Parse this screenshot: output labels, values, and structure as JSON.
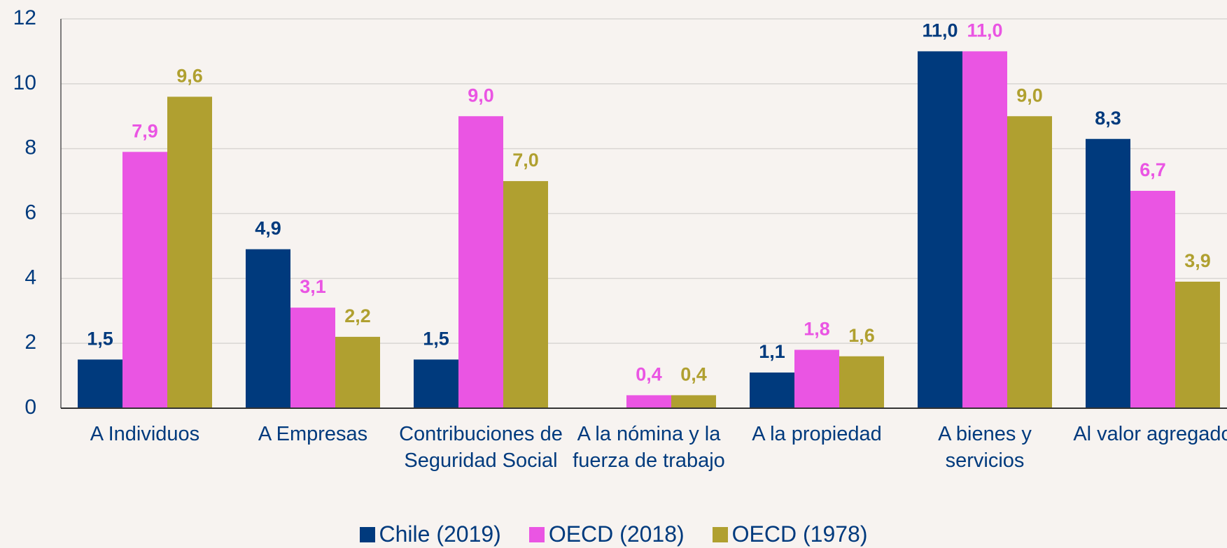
{
  "chart_data": {
    "type": "bar",
    "categories": [
      "A Individuos",
      "A Empresas",
      "Contribuciones de Seguridad Social",
      "A la nómina y la fuerza de trabajo",
      "A la propiedad",
      "A bienes y servicios",
      "Al valor agregado"
    ],
    "series": [
      {
        "name": "Chile (2019)",
        "color": "#003a7d",
        "values": [
          1.5,
          4.9,
          1.5,
          null,
          1.1,
          11.0,
          8.3
        ],
        "value_labels": [
          "1,5",
          "4,9",
          "1,5",
          null,
          "1,1",
          "11,0",
          "8,3"
        ]
      },
      {
        "name": "OECD (2018)",
        "color": "#ea55e3",
        "values": [
          7.9,
          3.1,
          9.0,
          0.4,
          1.8,
          11.0,
          6.7
        ],
        "value_labels": [
          "7,9",
          "3,1",
          "9,0",
          "0,4",
          "1,8",
          "11,0",
          "6,7"
        ]
      },
      {
        "name": "OECD (1978)",
        "color": "#b0a030",
        "values": [
          9.6,
          2.2,
          7.0,
          0.4,
          1.6,
          9.0,
          3.9
        ],
        "value_labels": [
          "9,6",
          "2,2",
          "7,0",
          "0,4",
          "1,6",
          "9,0",
          "3,9"
        ]
      }
    ],
    "ylim": [
      0,
      12
    ],
    "yticks": [
      0,
      2,
      4,
      6,
      8,
      10,
      12
    ],
    "grid": true
  }
}
